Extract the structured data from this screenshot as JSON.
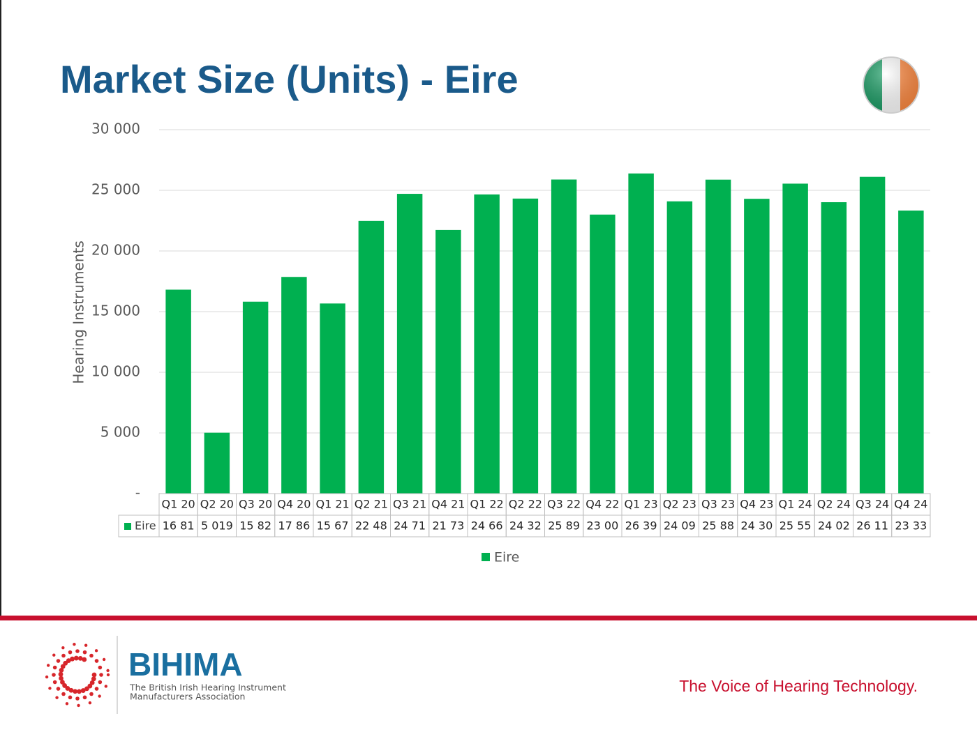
{
  "chart_data": {
    "type": "bar",
    "title": "Market Size (Units) - Eire",
    "ylabel": "Hearing Instruments",
    "categories": [
      "Q1 20",
      "Q2 20",
      "Q3 20",
      "Q4 20",
      "Q1 21",
      "Q2 21",
      "Q3 21",
      "Q4 21",
      "Q1 22",
      "Q2 22",
      "Q3 22",
      "Q4 22",
      "Q1 23",
      "Q2 23",
      "Q3 23",
      "Q4 23",
      "Q1 24",
      "Q2 24",
      "Q3 24",
      "Q4 24"
    ],
    "series": [
      {
        "name": "Eire",
        "color": "#00b050",
        "values": [
          16810,
          5019,
          15820,
          17860,
          15670,
          22480,
          24710,
          21730,
          24660,
          24320,
          25890,
          23000,
          26390,
          24090,
          25880,
          24300,
          25550,
          24020,
          26110,
          23330
        ],
        "value_labels": [
          "16 81",
          "5 019",
          "15 82",
          "17 86",
          "15 67",
          "22 48",
          "24 71",
          "21 73",
          "24 66",
          "24 32",
          "25 89",
          "23 00",
          "26 39",
          "24 09",
          "25 88",
          "24 30",
          "25 55",
          "24 02",
          "26 11",
          "23 33"
        ]
      }
    ],
    "ylim": [
      0,
      30000
    ],
    "yticks": [
      {
        "value": 0,
        "label": "-"
      },
      {
        "value": 5000,
        "label": "5 000"
      },
      {
        "value": 10000,
        "label": "10 000"
      },
      {
        "value": 15000,
        "label": "15 000"
      },
      {
        "value": 20000,
        "label": "20 000"
      },
      {
        "value": 25000,
        "label": "25 000"
      },
      {
        "value": 30000,
        "label": "30 000"
      }
    ],
    "grid": true
  },
  "footer": {
    "brand": "BIHIMA",
    "brand_line1": "The British Irish Hearing Instrument",
    "brand_line2": "Manufacturers Association",
    "tagline": "The Voice of Hearing Technology."
  }
}
